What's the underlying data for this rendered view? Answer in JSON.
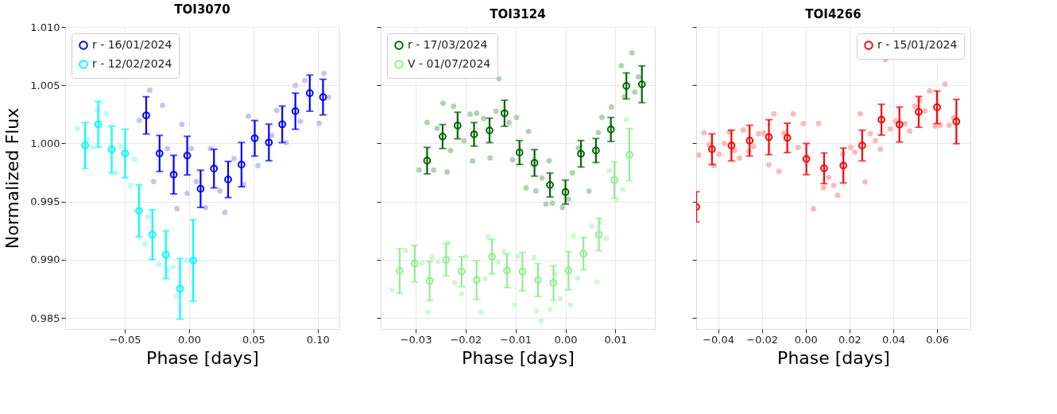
{
  "chart_data": [
    {
      "type": "scatter",
      "title": "TOI3070",
      "xlabel": "Phase [days]",
      "ylabel": "Normalized Flux",
      "legend": "top left",
      "grid": true,
      "marker": "circle",
      "xlim": [
        -0.0964,
        0.1168
      ],
      "ylim": [
        0.98406,
        1.01
      ],
      "xticks": [
        {
          "value": -0.05,
          "label": "−0.05"
        },
        {
          "value": 0,
          "label": "0.00"
        },
        {
          "value": 0.05,
          "label": "0.05"
        },
        {
          "value": 0.1,
          "label": "0.10"
        }
      ],
      "yticks": [
        {
          "value": 0.985,
          "label": "0.985"
        },
        {
          "value": 0.99,
          "label": "0.990"
        },
        {
          "value": 0.995,
          "label": "0.995"
        },
        {
          "value": 1,
          "label": "1.000"
        },
        {
          "value": 1.005,
          "label": "1.005"
        },
        {
          "value": 1.01,
          "label": "1.010"
        }
      ],
      "series": [
        {
          "color": "#c4c4fa",
          "x": [
            -0.0388,
            -0.0307,
            -0.0207,
            -0.0168,
            -0.0276,
            -0.0095,
            -0.0056,
            -0.0015,
            0.0017,
            0.0056,
            0.0127,
            0.0166,
            0.0239,
            0.0278,
            0.0349,
            0.0423,
            0.0461,
            0.0535,
            0.0643,
            0.0681,
            0.0755,
            0.0826,
            0.0865,
            0.0898,
            0.101,
            0.1048,
            0.1083
          ],
          "values": [
            1.00197,
            1.00457,
            1.00327,
            0.99956,
            0.99673,
            0.9944,
            1.00164,
            0.9957,
            0.99956,
            0.99673,
            0.99449,
            0.99956,
            0.99593,
            0.99407,
            0.9987,
            0.99646,
            1.00233,
            0.99809,
            1.00069,
            1.00283,
            1.00006,
            1.00499,
            1.00189,
            1.00541,
            1.00172,
            1.00602,
            1.00398
          ]
        },
        {
          "color": "#c4f7f7",
          "x": [
            -0.0867,
            -0.0792,
            -0.0755,
            -0.0716,
            -0.0643,
            -0.0569,
            -0.0531,
            -0.0459,
            -0.0427,
            -0.0347,
            -0.0319,
            -0.0236,
            -0.0166,
            -0.0125,
            -0.0097,
            -0.0021
          ],
          "values": [
            1.00128,
            1.00036,
            0.99966,
            1.00285,
            1.00256,
            0.99748,
            0.99973,
            0.99639,
            0.99862,
            0.99138,
            0.99371,
            0.98964,
            0.9891,
            0.98939,
            0.98683,
            0.98994
          ]
        },
        {
          "name": "r - 16/01/2024",
          "color": "#0000ff",
          "x": [
            -0.0334,
            -0.023,
            -0.012,
            -0.0015,
            0.0089,
            0.0193,
            0.0303,
            0.0407,
            0.051,
            0.062,
            0.0724,
            0.0826,
            0.0938,
            0.1041
          ],
          "values": [
            1.00241,
            0.99914,
            0.99732,
            0.99895,
            0.9961,
            0.99784,
            0.9969,
            0.99818,
            1.00044,
            1.00008,
            1.00164,
            1.00277,
            1.00432,
            1.00398
          ],
          "errors": [
            0.0016,
            0.00155,
            0.00166,
            0.00166,
            0.0016,
            0.00166,
            0.00155,
            0.0019,
            0.00153,
            0.00157,
            0.00157,
            0.00155,
            0.00155,
            0.00153
          ]
        },
        {
          "name": "r - 12/02/2024",
          "color": "#00ffff",
          "x": [
            -0.0809,
            -0.0707,
            -0.0602,
            -0.0498,
            -0.039,
            -0.0286,
            -0.0181,
            -0.0071,
            0.0031
          ],
          "values": [
            0.99983,
            1.00164,
            0.99948,
            0.99914,
            0.99421,
            0.99216,
            0.99044,
            0.98751,
            0.98994
          ],
          "errors": [
            0.00197,
            0.00197,
            0.002,
            0.00208,
            0.00224,
            0.00214,
            0.00205,
            0.0026,
            0.0035
          ]
        }
      ]
    },
    {
      "type": "scatter",
      "title": "TOI3124",
      "xlabel": "Phase [days]",
      "legend": "top left",
      "grid": true,
      "marker": "circle",
      "tick_labels": "x",
      "xlim": [
        -0.037,
        0.0179
      ],
      "ylim": [
        0.98406,
        1.01
      ],
      "xticks": [
        {
          "value": -0.03,
          "label": "−0.03"
        },
        {
          "value": -0.02,
          "label": "−0.02"
        },
        {
          "value": -0.01,
          "label": "−0.01"
        },
        {
          "value": 0,
          "label": "0.00"
        },
        {
          "value": 0.01,
          "label": "0.01"
        }
      ],
      "yticks": [
        {
          "value": 0.985,
          "label": null
        },
        {
          "value": 0.99,
          "label": null
        },
        {
          "value": 0.995,
          "label": null
        },
        {
          "value": 1,
          "label": null
        },
        {
          "value": 1.005,
          "label": null
        },
        {
          "value": 1.01,
          "label": null
        }
      ],
      "series": [
        {
          "color": "#b0d2b0",
          "x": [
            -0.0293,
            -0.0277,
            -0.0264,
            -0.0257,
            -0.0245,
            -0.0237,
            -0.023,
            -0.0224,
            -0.0203,
            -0.0191,
            -0.0186,
            -0.0178,
            -0.0164,
            -0.0151,
            -0.0139,
            -0.0133,
            -0.0113,
            -0.0106,
            -0.0098,
            -0.0074,
            -0.0079,
            -0.0059,
            -0.0047,
            -0.0039,
            -0.0033,
            -0.0026,
            -0.0006,
            0.0006,
            0.0014,
            0.0026,
            0.0047,
            0.0066,
            0.0073,
            0.0092,
            0.0112,
            0.0118,
            0.0133,
            0.0139,
            0.0146
          ],
          "values": [
            0.99772,
            1.00181,
            0.99772,
            1.00129,
            1.00344,
            0.99755,
            0.99939,
            1.00319,
            1.00023,
            1.00251,
            0.9985,
            1.00259,
            1.00213,
            0.99876,
            1.00276,
            1.00555,
            1.00179,
            0.99859,
            1.00224,
            1.00103,
            0.99618,
            0.99591,
            0.99703,
            0.99479,
            0.99852,
            0.99487,
            0.99451,
            0.99521,
            0.99747,
            0.9996,
            0.99591,
            1.00093,
            1.00224,
            1.00312,
            1.00667,
            1.00403,
            1.00778,
            1.00441,
            1.00572
          ]
        },
        {
          "color": "#d4f6d4",
          "x": [
            -0.0347,
            -0.032,
            -0.0287,
            -0.0275,
            -0.0267,
            -0.0255,
            -0.0235,
            -0.0222,
            -0.0208,
            -0.0199,
            -0.0169,
            -0.0161,
            -0.0155,
            -0.0135,
            -0.0123,
            -0.0102,
            -0.0096,
            -0.0063,
            -0.0058,
            -0.0049,
            -0.0031,
            -0.002,
            -0.001,
            0.001,
            0.0016,
            0.0024,
            0.0053,
            0.0063,
            0.0069,
            0.0082,
            0.0088,
            0.0102,
            0.0115,
            0.0122
          ],
          "values": [
            0.98743,
            0.9908,
            0.98975,
            0.98551,
            0.99021,
            0.98985,
            0.99146,
            0.98802,
            0.98707,
            0.99027,
            0.98551,
            0.98838,
            0.992,
            0.98985,
            0.99074,
            0.98612,
            0.9903,
            0.99021,
            0.98561,
            0.98475,
            0.98576,
            0.98876,
            0.98665,
            0.98612,
            0.99207,
            0.98842,
            0.99289,
            0.9881,
            0.99323,
            0.99184,
            0.99764,
            0.99513,
            0.99601,
            1.00207
          ]
        },
        {
          "name": "r - 17/03/2024",
          "color": "#006400",
          "x": [
            -0.0277,
            -0.0246,
            -0.0216,
            -0.0183,
            -0.0152,
            -0.0122,
            -0.0092,
            -0.0062,
            -0.0031,
            0.0,
            0.0031,
            0.0061,
            0.0091,
            0.0122,
            0.0153
          ],
          "values": [
            0.99852,
            1.00059,
            1.00154,
            1.00078,
            1.00112,
            1.00259,
            0.99922,
            0.99833,
            0.99643,
            0.99582,
            0.99911,
            0.99939,
            1.0012,
            1.00494,
            1.00508
          ],
          "errors": [
            0.00114,
            0.00103,
            0.00114,
            0.00101,
            0.00105,
            0.00112,
            0.00103,
            0.00114,
            0.00103,
            0.00103,
            0.00114,
            0.00103,
            0.00103,
            0.00112,
            0.00158
          ]
        },
        {
          "name": "V - 01/07/2024",
          "color": "#90ee90",
          "x": [
            -0.0332,
            -0.0302,
            -0.0272,
            -0.0239,
            -0.0208,
            -0.0178,
            -0.0147,
            -0.0117,
            -0.0086,
            -0.0055,
            -0.0024,
            0.0006,
            0.0036,
            0.0067,
            0.0098,
            0.0128
          ],
          "values": [
            0.98905,
            0.98968,
            0.98819,
            0.99,
            0.98899,
            0.98827,
            0.99027,
            0.98907,
            0.98899,
            0.98827,
            0.98802,
            0.98907,
            0.99053,
            0.99217,
            0.99686,
            0.99903
          ],
          "errors": [
            0.00192,
            0.00156,
            0.00167,
            0.00139,
            0.00129,
            0.00167,
            0.00148,
            0.00146,
            0.00165,
            0.00141,
            0.00148,
            0.00165,
            0.00139,
            0.00139,
            0.00156,
            0.00224
          ]
        }
      ]
    },
    {
      "type": "scatter",
      "title": "TOI4266",
      "xlabel": "Phase [days]",
      "legend": "top right",
      "grid": true,
      "marker": "circle",
      "tick_labels": "x",
      "xlim": [
        -0.05,
        0.0752
      ],
      "ylim": [
        0.98406,
        1.01
      ],
      "xticks": [
        {
          "value": -0.04,
          "label": "−0.04"
        },
        {
          "value": -0.02,
          "label": "−0.02"
        },
        {
          "value": 0,
          "label": "0.00"
        },
        {
          "value": 0.02,
          "label": "0.02"
        },
        {
          "value": 0.04,
          "label": "0.04"
        },
        {
          "value": 0.06,
          "label": "0.06"
        }
      ],
      "yticks": [
        {
          "value": 0.985,
          "label": null
        },
        {
          "value": 0.99,
          "label": null
        },
        {
          "value": 0.995,
          "label": null
        },
        {
          "value": 1,
          "label": null
        },
        {
          "value": 1.005,
          "label": null
        },
        {
          "value": 1.01,
          "label": null
        }
      ],
      "series": [
        {
          "color": "#ffb8b8",
          "x": [
            -0.0488,
            -0.0464,
            -0.0441,
            -0.0418,
            -0.0395,
            -0.0372,
            -0.0349,
            -0.0325,
            -0.0302,
            -0.0284,
            -0.026,
            -0.0238,
            -0.0215,
            -0.0191,
            -0.0168,
            -0.0145,
            -0.0122,
            -0.0099,
            -0.0057,
            -0.0034,
            -0.0011,
            0.0035,
            0.0059,
            0.0081,
            0.0105,
            0.0128,
            0.0146,
            0.017,
            0.0206,
            0.0225,
            0.0249,
            0.0271,
            0.0295,
            0.0318,
            0.0341,
            0.0364,
            0.0387,
            0.041,
            0.0453,
            0.0475,
            0.0499,
            0.0521,
            0.0544,
            0.0566,
            0.0591,
            0.0614,
            0.0636,
            0.0655,
            0.0676
          ],
          "values": [
            0.999,
            1.0009,
            0.9999,
            0.9981,
            0.99908,
            1.0,
            1.00098,
            0.9994,
            0.99874,
            1.00114,
            0.99932,
            0.99974,
            1.00082,
            1.0009,
            0.99818,
            1.00255,
            0.9976,
            1.0009,
            1.00255,
            0.99966,
            1.0017,
            0.99439,
            1.0017,
            0.99619,
            0.99709,
            0.99639,
            0.99555,
            0.99908,
            0.99966,
            0.99924,
            1.00255,
            0.99669,
            1.00082,
            1.00024,
            0.9995,
            1.00721,
            1.00124,
            1.0019,
            1.0017,
            1.00106,
            1.00321,
            1.00371,
            1.00279,
            1.00451,
            1.00148,
            1.00156,
            1.00509,
            1.00156,
            1.0022
          ]
        },
        {
          "name": "r - 15/01/2024",
          "color": "#ff0000",
          "x": [
            -0.05,
            -0.0428,
            -0.0339,
            -0.0256,
            -0.0168,
            -0.0084,
            0.0003,
            0.0084,
            0.0172,
            0.0258,
            0.0346,
            0.0428,
            0.0516,
            0.06,
            0.0688
          ],
          "values": [
            0.99455,
            0.9995,
            0.99982,
            1.00024,
            1.00054,
            1.00048,
            0.99866,
            0.99786,
            0.9981,
            0.99982,
            1.00204,
            1.00162,
            1.00271,
            1.00311,
            1.00188
          ],
          "errors": [
            0.0013,
            0.00132,
            0.00132,
            0.00132,
            0.0015,
            0.00126,
            0.00134,
            0.00132,
            0.0015,
            0.00132,
            0.00132,
            0.0015,
            0.00132,
            0.0014,
            0.0019
          ]
        }
      ]
    }
  ]
}
